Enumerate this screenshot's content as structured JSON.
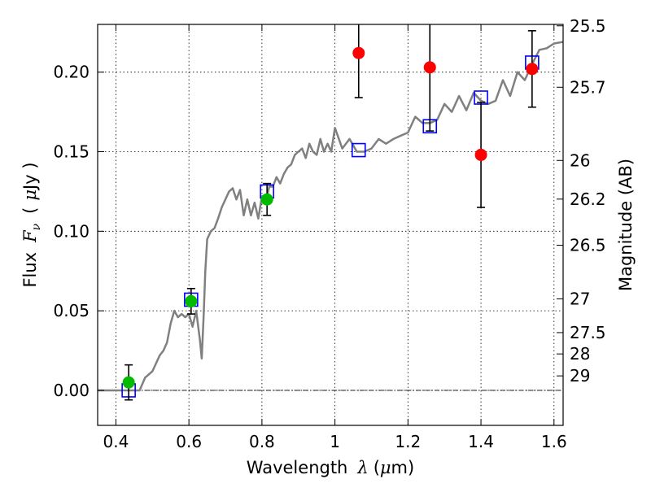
{
  "chart_data": {
    "type": "scatter",
    "title": "",
    "xlabel": "Wavelength",
    "xlabel_symbol": "λ",
    "xlabel_unit_open": "(",
    "xlabel_unit_mu": "μ",
    "xlabel_unit_rest": "m)",
    "ylabel": "Flux",
    "ylabel_symbol": "F",
    "ylabel_subscript": "ν",
    "ylabel_unit_open": "(",
    "ylabel_unit_mu": "μ",
    "ylabel_unit_rest": "Jy )",
    "y2label": "Magnitude (AB)",
    "xlim": [
      0.35,
      1.625
    ],
    "ylim": [
      -0.022,
      0.23
    ],
    "grid": true,
    "x_ticks": [
      {
        "value": 0.4,
        "label": "0.4"
      },
      {
        "value": 0.6,
        "label": "0.6"
      },
      {
        "value": 0.8,
        "label": "0.8"
      },
      {
        "value": 1.0,
        "label": "1"
      },
      {
        "value": 1.2,
        "label": "1.2"
      },
      {
        "value": 1.4,
        "label": "1.4"
      },
      {
        "value": 1.6,
        "label": "1.6"
      }
    ],
    "y_ticks": [
      {
        "value": 0.0,
        "label": "0.00"
      },
      {
        "value": 0.05,
        "label": "0.05"
      },
      {
        "value": 0.1,
        "label": "0.10"
      },
      {
        "value": 0.15,
        "label": "0.15"
      },
      {
        "value": 0.2,
        "label": "0.20"
      }
    ],
    "y2_ticks": [
      {
        "label": "25.5",
        "flux": 0.2291
      },
      {
        "label": "25.7",
        "flux": 0.1905
      },
      {
        "label": "26",
        "flux": 0.1445
      },
      {
        "label": "26.2",
        "flux": 0.1202
      },
      {
        "label": "26.5",
        "flux": 0.0912
      },
      {
        "label": "27",
        "flux": 0.0575
      },
      {
        "label": "27.5",
        "flux": 0.0363
      },
      {
        "label": "28",
        "flux": 0.0229
      },
      {
        "label": "29",
        "flux": 0.0091
      }
    ],
    "zero_line": 0.0,
    "colors": {
      "model": "#808080",
      "model_photometry": "#0000ff",
      "detection": "#00bb00",
      "nir_measurement": "#ff0000",
      "errorbar": "#000000",
      "grid": "#000000"
    },
    "model_spectrum": {
      "x": [
        0.35,
        0.45,
        0.465,
        0.48,
        0.5,
        0.52,
        0.53,
        0.54,
        0.55,
        0.56,
        0.57,
        0.58,
        0.59,
        0.6,
        0.61,
        0.62,
        0.63,
        0.635,
        0.64,
        0.645,
        0.65,
        0.66,
        0.67,
        0.68,
        0.69,
        0.7,
        0.71,
        0.72,
        0.73,
        0.74,
        0.75,
        0.76,
        0.77,
        0.78,
        0.79,
        0.8,
        0.81,
        0.82,
        0.83,
        0.84,
        0.85,
        0.86,
        0.87,
        0.88,
        0.89,
        0.9,
        0.91,
        0.92,
        0.93,
        0.94,
        0.95,
        0.96,
        0.97,
        0.98,
        0.99,
        1.0,
        1.02,
        1.04,
        1.06,
        1.08,
        1.1,
        1.12,
        1.14,
        1.16,
        1.18,
        1.2,
        1.22,
        1.24,
        1.26,
        1.28,
        1.3,
        1.32,
        1.34,
        1.36,
        1.38,
        1.4,
        1.42,
        1.44,
        1.46,
        1.48,
        1.5,
        1.52,
        1.54,
        1.56,
        1.58,
        1.6,
        1.625
      ],
      "y": [
        0.0,
        0.0,
        0.0,
        0.008,
        0.012,
        0.022,
        0.025,
        0.03,
        0.042,
        0.05,
        0.046,
        0.048,
        0.046,
        0.048,
        0.04,
        0.05,
        0.032,
        0.02,
        0.045,
        0.075,
        0.095,
        0.1,
        0.102,
        0.108,
        0.115,
        0.12,
        0.125,
        0.127,
        0.12,
        0.126,
        0.11,
        0.12,
        0.11,
        0.118,
        0.108,
        0.122,
        0.118,
        0.128,
        0.128,
        0.134,
        0.13,
        0.136,
        0.14,
        0.142,
        0.148,
        0.15,
        0.152,
        0.146,
        0.155,
        0.15,
        0.148,
        0.158,
        0.15,
        0.155,
        0.15,
        0.165,
        0.152,
        0.158,
        0.15,
        0.15,
        0.152,
        0.158,
        0.155,
        0.158,
        0.16,
        0.162,
        0.172,
        0.168,
        0.168,
        0.17,
        0.18,
        0.175,
        0.185,
        0.176,
        0.187,
        0.182,
        0.18,
        0.182,
        0.195,
        0.185,
        0.2,
        0.195,
        0.205,
        0.214,
        0.215,
        0.218,
        0.219
      ]
    },
    "series": [
      {
        "kind": "model-photometry",
        "marker": "open-square",
        "x": [
          0.435,
          0.606,
          0.814,
          1.065,
          1.26,
          1.4,
          1.54
        ],
        "y": [
          0.0,
          0.057,
          0.125,
          0.151,
          0.166,
          0.184,
          0.206
        ]
      },
      {
        "kind": "detection",
        "marker": "filled-circle",
        "x": [
          0.435,
          0.606,
          0.814
        ],
        "y": [
          0.005,
          0.056,
          0.12
        ],
        "yerr": [
          0.011,
          0.008,
          0.01
        ]
      },
      {
        "kind": "nir-measurement",
        "marker": "filled-circle",
        "x": [
          1.065,
          1.26,
          1.4,
          1.54
        ],
        "y": [
          0.212,
          0.203,
          0.148,
          0.202
        ],
        "yerr": [
          0.028,
          0.04,
          0.033,
          0.024
        ]
      }
    ]
  }
}
